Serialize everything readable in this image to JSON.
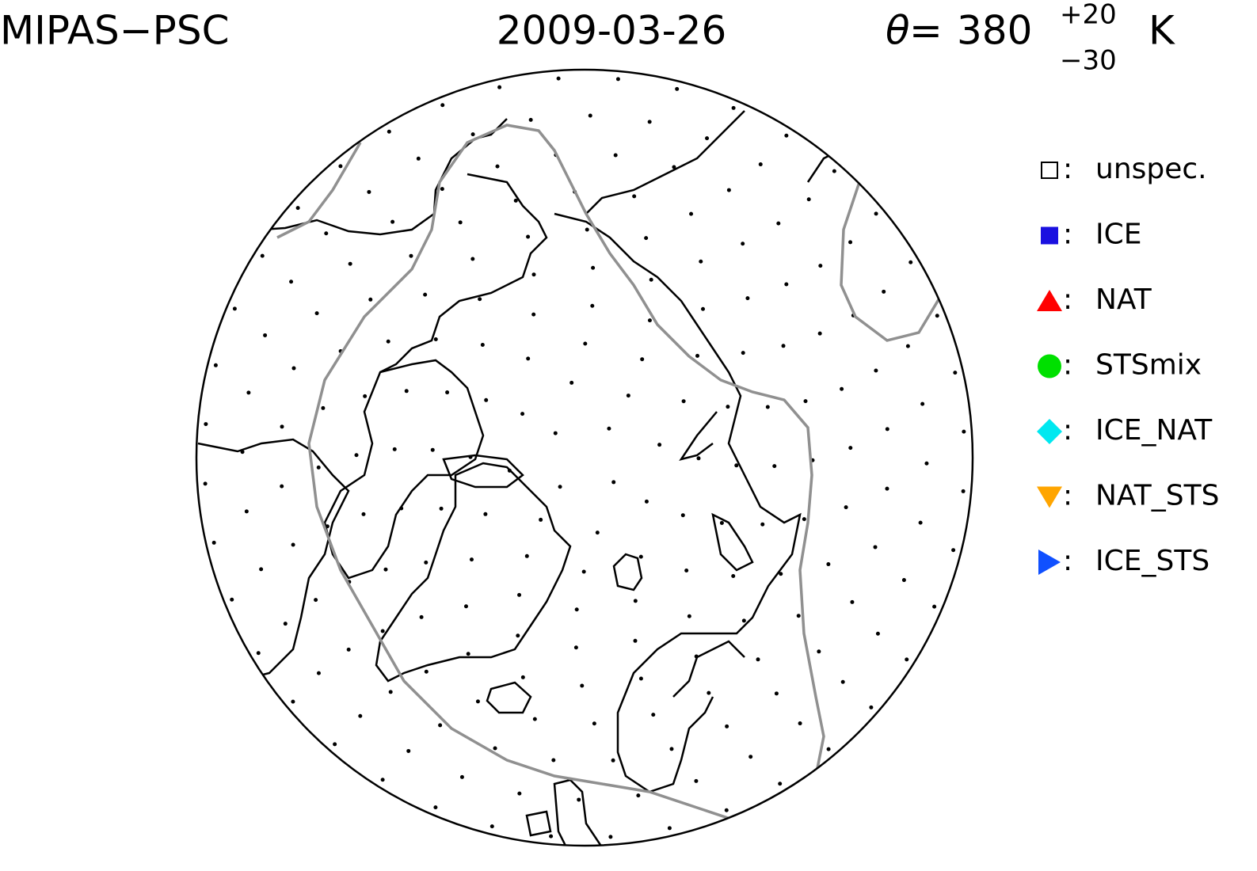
{
  "header": {
    "instrument": "MIPAS−PSC",
    "date": "2009-03-26",
    "theta": {
      "symbol": "θ",
      "equals": "=",
      "value": "380",
      "upper": "+20",
      "lower": "−30",
      "unit": "K"
    }
  },
  "legend": {
    "separator": ":",
    "items": [
      {
        "label": "unspec.",
        "marker": "square-open",
        "color": "#000000"
      },
      {
        "label": "ICE",
        "marker": "square",
        "color": "#1a10e0"
      },
      {
        "label": "NAT",
        "marker": "triangle-up",
        "color": "#ff0000"
      },
      {
        "label": "STSmix",
        "marker": "circle",
        "color": "#00e000"
      },
      {
        "label": "ICE_NAT",
        "marker": "diamond",
        "color": "#00e8f0"
      },
      {
        "label": "NAT_STS",
        "marker": "triangle-down",
        "color": "#ffa500"
      },
      {
        "label": "ICE_STS",
        "marker": "triangle-right",
        "color": "#1050ff"
      }
    ]
  }
}
